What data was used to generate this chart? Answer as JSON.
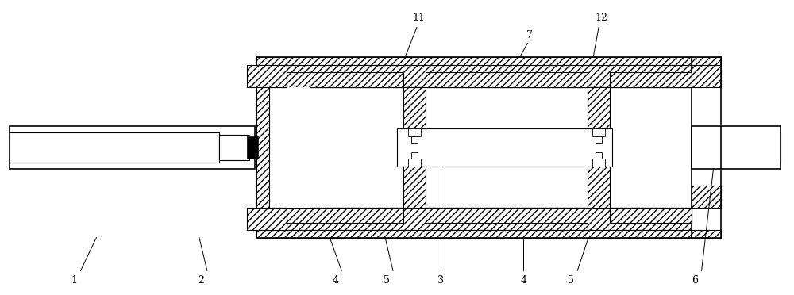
{
  "bg_color": "#ffffff",
  "lc": "#000000",
  "fig_w": 10.0,
  "fig_h": 3.72,
  "dpi": 100,
  "lw_thick": 1.2,
  "lw_med": 0.8,
  "lw_thin": 0.6,
  "hatch": "////",
  "fs": 9
}
